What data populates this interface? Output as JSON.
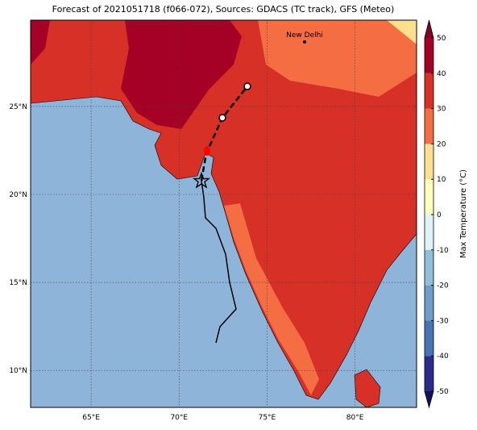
{
  "header": {
    "title": "Forecast of 2021051718 (f066-072), Sources: GDACS (TC track), GFS (Meteo)"
  },
  "map": {
    "xlim": [
      61.56,
      83.5
    ],
    "ylim": [
      7.9,
      29.9
    ],
    "xticks": [
      {
        "value": 65,
        "label": "65°E"
      },
      {
        "value": 70,
        "label": "70°E"
      },
      {
        "value": 75,
        "label": "75°E"
      },
      {
        "value": 80,
        "label": "80°E"
      }
    ],
    "yticks": [
      {
        "value": 10,
        "label": "10°N"
      },
      {
        "value": 15,
        "label": "15°N"
      },
      {
        "value": 20,
        "label": "20°N"
      },
      {
        "value": 25,
        "label": "25°N"
      }
    ],
    "places": [
      "New Delhi"
    ]
  },
  "colorbar": {
    "label": "Max Temperature (°C)",
    "lim": [
      -50,
      50
    ],
    "ticks": [
      -50,
      -40,
      -30,
      -20,
      -10,
      0,
      10,
      20,
      30,
      40,
      50
    ],
    "colors": [
      "#2b2b8c",
      "#4575b4",
      "#6f9ccb",
      "#91bfdb",
      "#e0f3f8",
      "#ffffbf",
      "#fee090",
      "#f46d43",
      "#d73027",
      "#a50026"
    ],
    "under_color": "#14145e",
    "over_color": "#800026"
  }
}
